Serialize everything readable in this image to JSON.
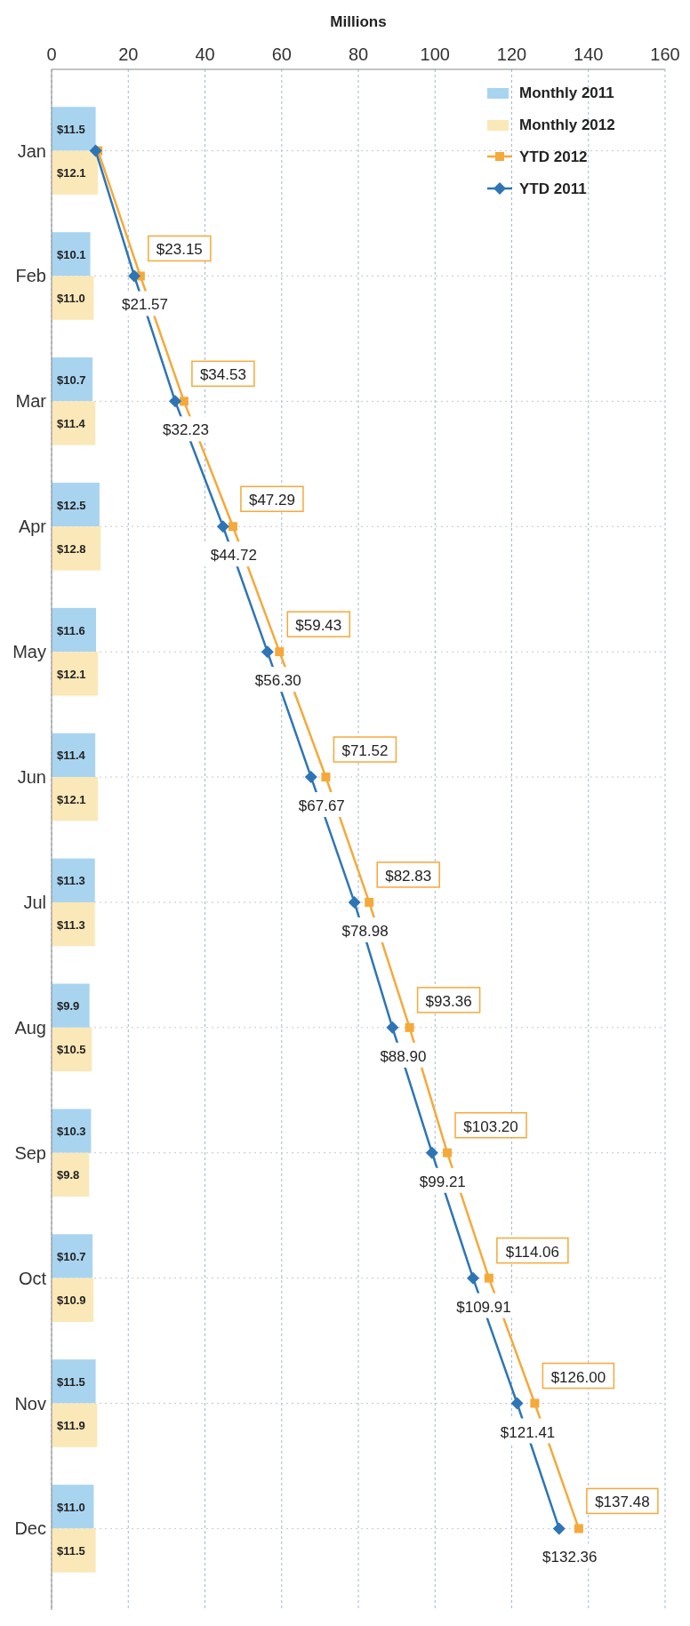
{
  "chart_data": {
    "type": "bar",
    "orientation": "horizontal",
    "xlabel": "Millions",
    "categories": [
      "Jan",
      "Feb",
      "Mar",
      "Apr",
      "May",
      "Jun",
      "Jul",
      "Aug",
      "Sep",
      "Oct",
      "Nov",
      "Dec"
    ],
    "xlim": [
      0,
      160
    ],
    "xticks": [
      0,
      20,
      40,
      60,
      80,
      100,
      120,
      140,
      160
    ],
    "grid": true,
    "legend": "top right",
    "series": [
      {
        "name": "Monthly 2011",
        "color": "#a9d4f0",
        "values": [
          11.5,
          10.1,
          10.7,
          12.5,
          11.6,
          11.4,
          11.3,
          9.9,
          10.3,
          10.7,
          11.5,
          11.0
        ],
        "value_labels": [
          "$11.5",
          "$10.1",
          "$10.7",
          "$12.5",
          "$11.6",
          "$11.4",
          "$11.3",
          "$9.9",
          "$10.3",
          "$10.7",
          "$11.5",
          "$11.0"
        ]
      },
      {
        "name": "Monthly 2012",
        "color": "#fbe8b8",
        "values": [
          12.1,
          11.0,
          11.4,
          12.8,
          12.1,
          12.1,
          11.3,
          10.5,
          9.8,
          10.9,
          11.9,
          11.5
        ],
        "value_labels": [
          "$12.1",
          "$11.0",
          "$11.4",
          "$12.8",
          "$12.1",
          "$12.1",
          "$11.3",
          "$10.5",
          "$9.8",
          "$10.9",
          "$11.9",
          "$11.5"
        ]
      },
      {
        "name": "YTD 2012",
        "type": "line",
        "color": "#f5a93a",
        "marker": "square",
        "values": [
          12.1,
          23.15,
          34.53,
          47.29,
          59.43,
          71.52,
          82.83,
          93.36,
          103.2,
          114.06,
          126.0,
          137.48
        ],
        "value_labels": [
          null,
          "$23.15",
          "$34.53",
          "$47.29",
          "$59.43",
          "$71.52",
          "$82.83",
          "$93.36",
          "$103.20",
          "$114.06",
          "$126.00",
          "$137.48"
        ]
      },
      {
        "name": "YTD 2011",
        "type": "line",
        "color": "#2e75b6",
        "marker": "diamond",
        "values": [
          11.5,
          21.57,
          32.23,
          44.72,
          56.3,
          67.67,
          78.98,
          88.9,
          99.21,
          109.91,
          121.41,
          132.36
        ],
        "value_labels": [
          null,
          "$21.57",
          "$32.23",
          "$44.72",
          "$56.30",
          "$67.67",
          "$78.98",
          "$88.90",
          "$99.21",
          "$109.91",
          "$121.41",
          "$132.36"
        ]
      }
    ]
  }
}
